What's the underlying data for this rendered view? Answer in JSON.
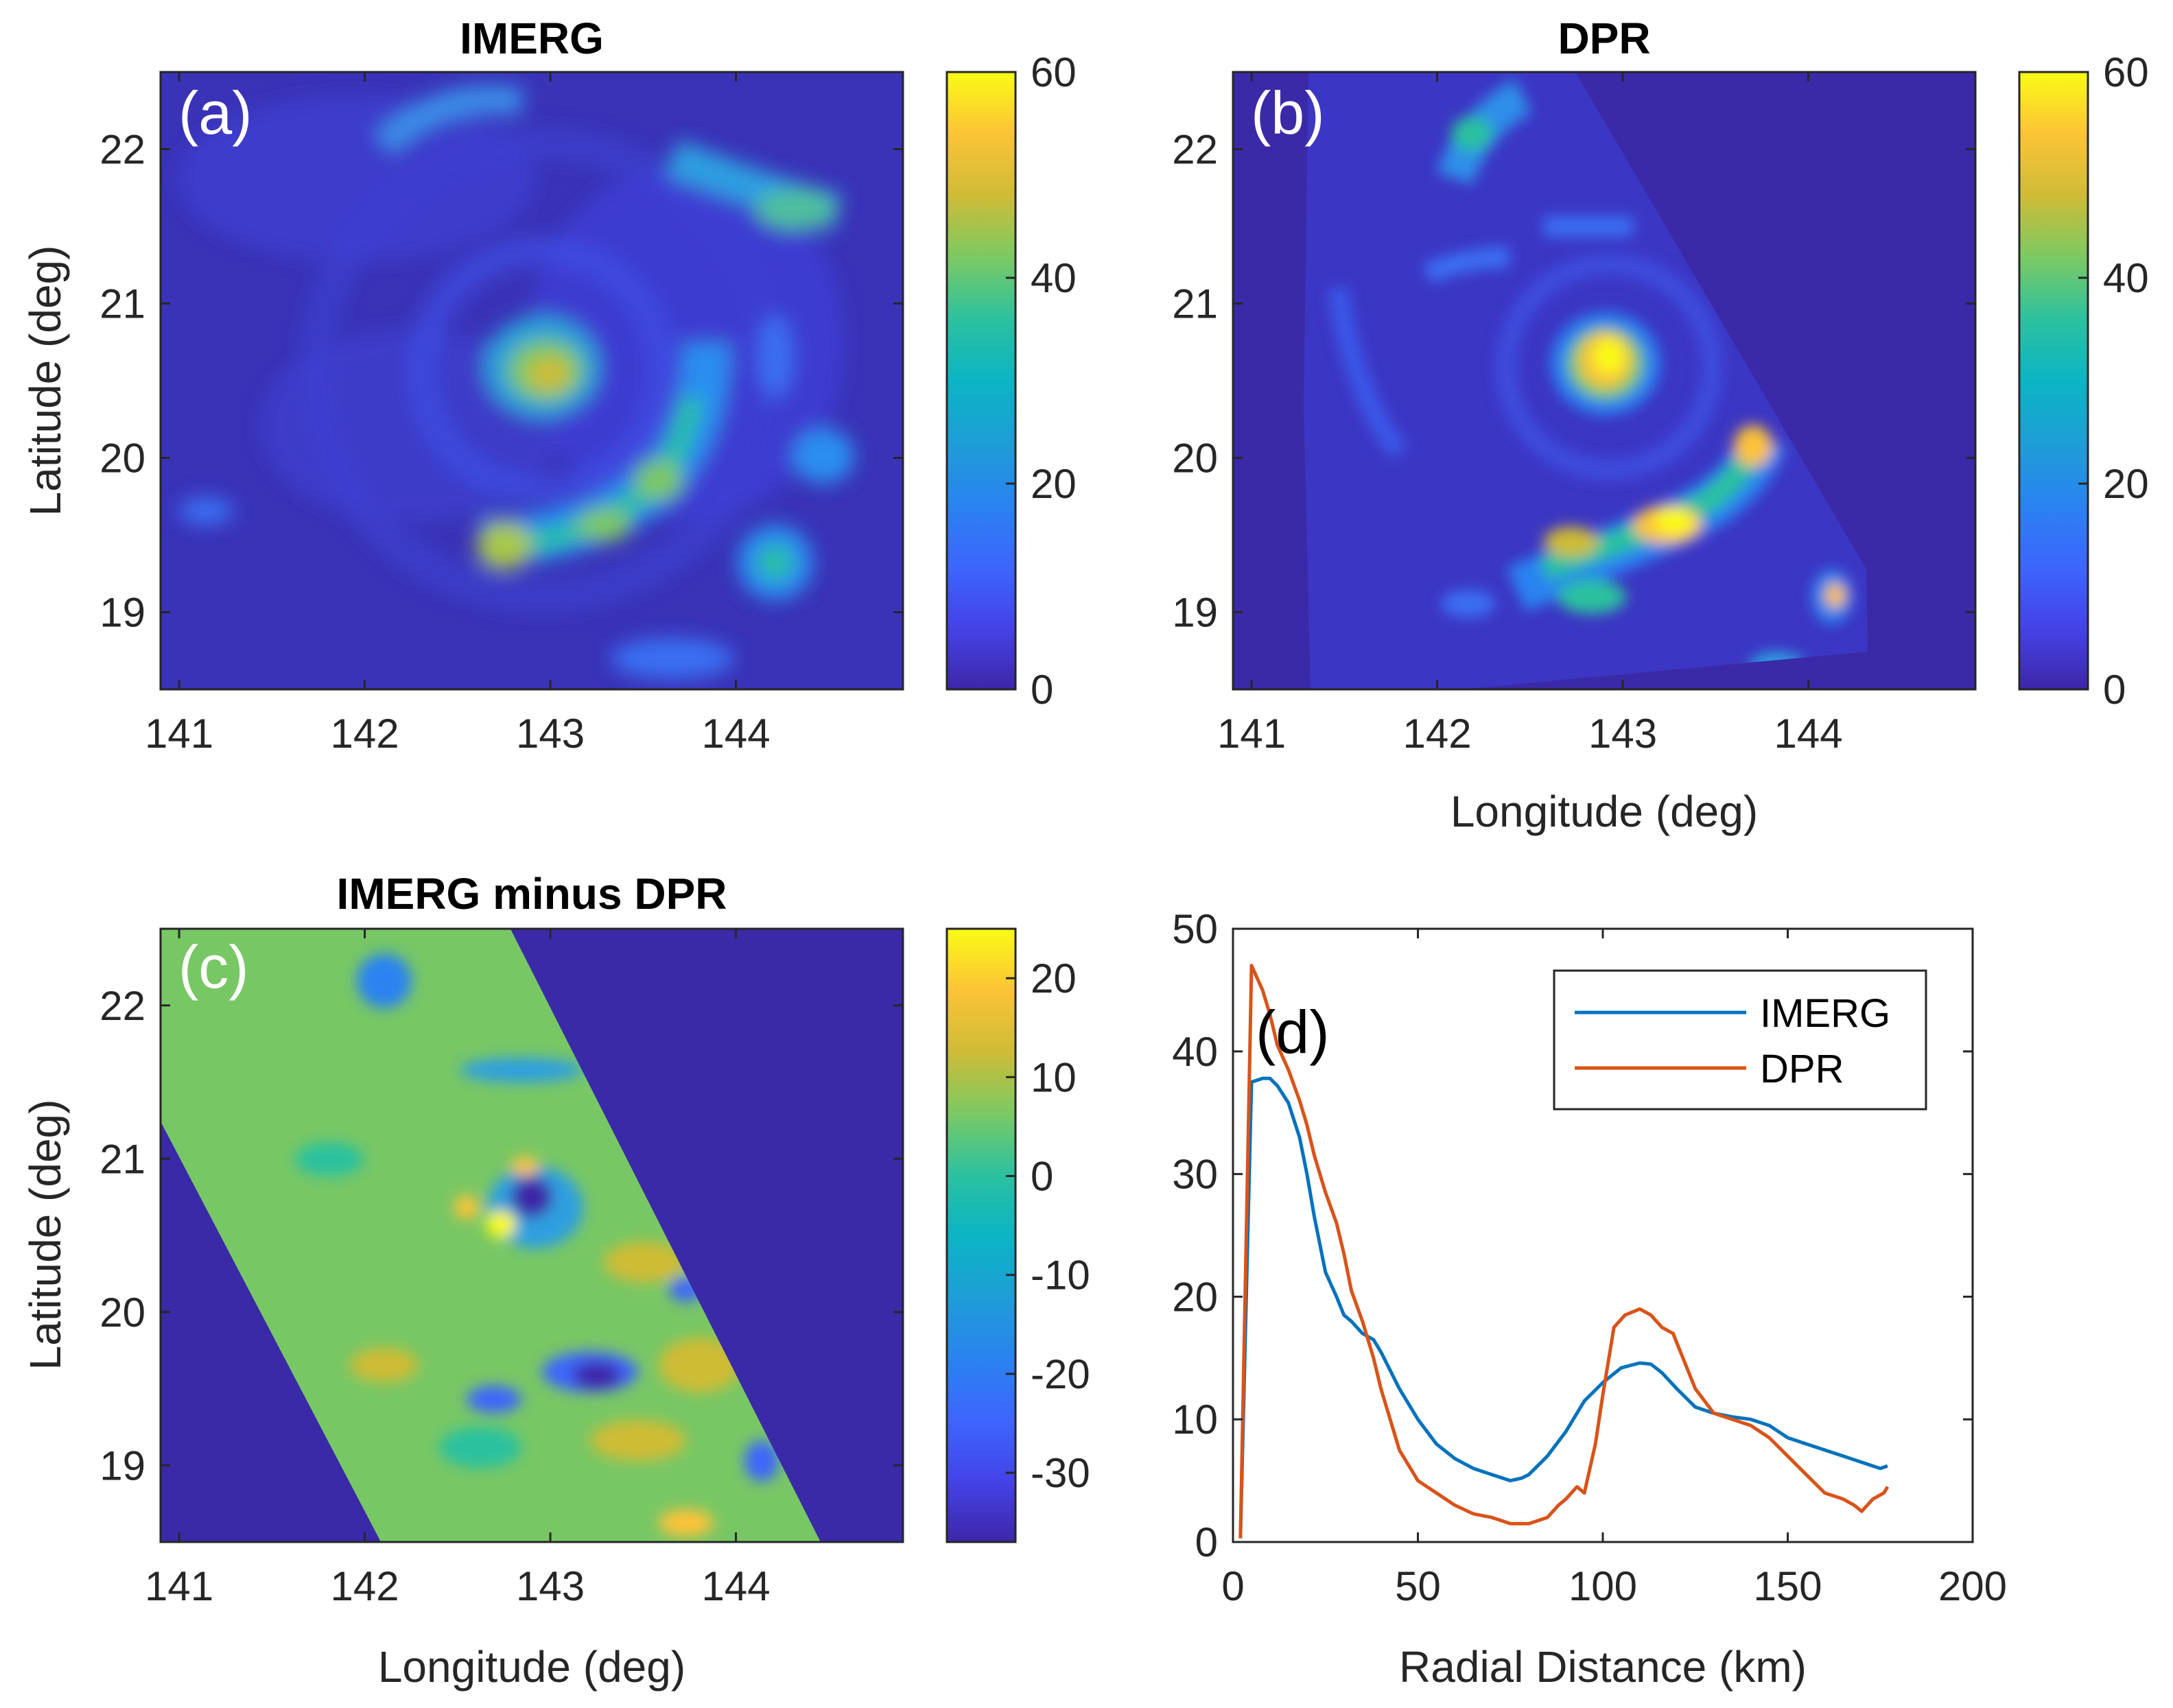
{
  "chart_data": [
    {
      "panel": "(a)",
      "type": "heatmap",
      "title": "IMERG",
      "xlabel": "",
      "ylabel": "Latitude (deg)",
      "xlim": [
        140.9,
        144.9
      ],
      "ylim": [
        18.5,
        22.5
      ],
      "xticks": [
        "141",
        "142",
        "143",
        "144"
      ],
      "yticks": [
        "19",
        "20",
        "21",
        "22"
      ],
      "colorbar": {
        "min": 0,
        "max": 60,
        "ticks": [
          "0",
          "20",
          "40",
          "60"
        ]
      },
      "features": [
        {
          "lon": 142.9,
          "lat": 20.65,
          "value": 45
        },
        {
          "lon": 143.6,
          "lat": 19.9,
          "value": 35
        },
        {
          "lon": 143.2,
          "lat": 19.6,
          "value": 32
        },
        {
          "lon": 142.7,
          "lat": 19.4,
          "value": 38
        },
        {
          "lon": 144.2,
          "lat": 19.3,
          "value": 25
        },
        {
          "lon": 144.5,
          "lat": 20.1,
          "value": 22
        },
        {
          "lon": 144.3,
          "lat": 21.9,
          "value": 30
        },
        {
          "lon": 142.4,
          "lat": 22.3,
          "value": 25
        }
      ]
    },
    {
      "panel": "(b)",
      "type": "heatmap",
      "title": "DPR",
      "xlabel": "Longitude (deg)",
      "ylabel": "",
      "xlim": [
        140.9,
        144.9
      ],
      "ylim": [
        18.5,
        22.5
      ],
      "xticks": [
        "141",
        "142",
        "143",
        "144"
      ],
      "yticks": [
        "19",
        "20",
        "21",
        "22"
      ],
      "colorbar": {
        "min": 0,
        "max": 60,
        "ticks": [
          "0",
          "20",
          "40",
          "60"
        ]
      },
      "features": [
        {
          "lon": 143.0,
          "lat": 20.65,
          "value": 58
        },
        {
          "lon": 143.3,
          "lat": 19.55,
          "value": 55
        },
        {
          "lon": 142.7,
          "lat": 19.5,
          "value": 48
        },
        {
          "lon": 143.7,
          "lat": 20.1,
          "value": 45
        },
        {
          "lon": 144.1,
          "lat": 19.1,
          "value": 48
        },
        {
          "lon": 142.2,
          "lat": 22.1,
          "value": 30
        }
      ]
    },
    {
      "panel": "(c)",
      "type": "heatmap",
      "title": "IMERG minus DPR",
      "xlabel": "Longitude (deg)",
      "ylabel": "Latitude (deg)",
      "xlim": [
        140.9,
        144.9
      ],
      "ylim": [
        18.5,
        22.5
      ],
      "xticks": [
        "141",
        "142",
        "143",
        "144"
      ],
      "yticks": [
        "19",
        "20",
        "21",
        "22"
      ],
      "colorbar": {
        "min": -37,
        "max": 25,
        "ticks": [
          "-30",
          "-20",
          "-10",
          "0",
          "10",
          "20"
        ]
      },
      "features": [
        {
          "lon": 142.8,
          "lat": 20.6,
          "value": 20
        },
        {
          "lon": 142.9,
          "lat": 20.8,
          "value": 15
        },
        {
          "lon": 143.0,
          "lat": 20.7,
          "value": -33
        },
        {
          "lon": 143.25,
          "lat": 19.5,
          "value": -33
        },
        {
          "lon": 144.1,
          "lat": 19.1,
          "value": -25
        },
        {
          "lon": 143.8,
          "lat": 19.6,
          "value": 15
        },
        {
          "lon": 143.9,
          "lat": 20.0,
          "value": 18
        }
      ]
    },
    {
      "panel": "(d)",
      "type": "line",
      "title": "",
      "xlabel": "Radial Distance (km)",
      "ylabel": "",
      "xlim": [
        0,
        200
      ],
      "ylim": [
        0,
        50
      ],
      "xticks": [
        "0",
        "50",
        "100",
        "150",
        "200"
      ],
      "yticks": [
        "0",
        "10",
        "20",
        "30",
        "40",
        "50"
      ],
      "legend": "top-right",
      "series": [
        {
          "name": "IMERG",
          "color": "#0072bd",
          "x": [
            2,
            5,
            8,
            10,
            12,
            15,
            18,
            20,
            22,
            25,
            28,
            30,
            32,
            35,
            38,
            40,
            45,
            50,
            55,
            60,
            65,
            70,
            75,
            78,
            80,
            85,
            90,
            95,
            100,
            105,
            110,
            113,
            116,
            120,
            125,
            130,
            135,
            140,
            145,
            150,
            155,
            160,
            165,
            170,
            175,
            177
          ],
          "y": [
            0.3,
            37.5,
            37.8,
            37.8,
            37.2,
            35.8,
            33.0,
            30.0,
            26.5,
            22.0,
            20.0,
            18.5,
            18.0,
            17.0,
            16.5,
            15.5,
            12.5,
            10.0,
            8.0,
            6.8,
            6.0,
            5.5,
            5.0,
            5.2,
            5.5,
            7.0,
            9.0,
            11.5,
            13.0,
            14.2,
            14.6,
            14.5,
            13.8,
            12.5,
            11.0,
            10.5,
            10.2,
            10.0,
            9.5,
            8.5,
            8.0,
            7.5,
            7.0,
            6.5,
            6.0,
            6.2
          ]
        },
        {
          "name": "DPR",
          "color": "#d95319",
          "x": [
            2,
            5,
            8,
            10,
            12,
            15,
            18,
            20,
            22,
            25,
            28,
            30,
            32,
            35,
            38,
            40,
            45,
            50,
            55,
            60,
            65,
            70,
            75,
            78,
            80,
            85,
            88,
            90,
            93,
            95,
            98,
            100,
            103,
            106,
            110,
            113,
            116,
            119,
            121,
            125,
            130,
            135,
            140,
            145,
            150,
            155,
            160,
            165,
            168,
            170,
            173,
            176,
            177
          ],
          "y": [
            0.3,
            47.0,
            45.0,
            43.0,
            40.5,
            38.5,
            36.0,
            34.0,
            31.5,
            28.5,
            26.0,
            23.5,
            20.5,
            18.0,
            15.0,
            12.5,
            7.5,
            5.0,
            4.0,
            3.0,
            2.3,
            2.0,
            1.5,
            1.5,
            1.5,
            2.0,
            3.0,
            3.5,
            4.5,
            4.0,
            8.0,
            12.0,
            17.5,
            18.5,
            19.0,
            18.5,
            17.5,
            17.0,
            15.5,
            12.5,
            10.5,
            10.0,
            9.5,
            8.5,
            7.0,
            5.5,
            4.0,
            3.5,
            3.0,
            2.5,
            3.5,
            4.0,
            4.5
          ]
        }
      ]
    }
  ],
  "labels": {
    "a": "(a)",
    "b": "(b)",
    "c": "(c)",
    "d": "(d)"
  },
  "colors": {
    "parula_low": "#3e26a8",
    "parula_high": "#f9fb15",
    "axis": "#262626"
  }
}
